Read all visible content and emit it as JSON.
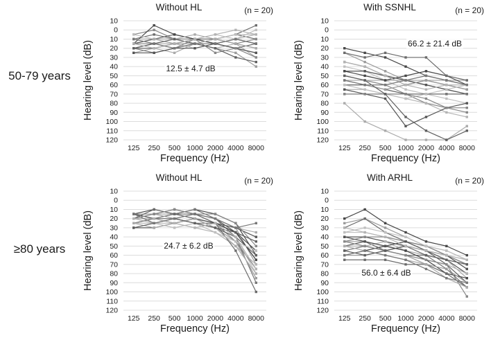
{
  "figure": {
    "row_labels": [
      "50-79 years",
      "≥80 years"
    ],
    "y_axis": {
      "label": "Hearing level (dB)",
      "tick_labels": [
        "10",
        "0",
        "10",
        "20",
        "30",
        "40",
        "50",
        "60",
        "70",
        "80",
        "90",
        "100",
        "110",
        "120"
      ],
      "tick_values": [
        -10,
        0,
        10,
        20,
        30,
        40,
        50,
        60,
        70,
        80,
        90,
        100,
        110,
        120
      ],
      "inverted": true
    },
    "x_axis": {
      "label": "Frequency (Hz)",
      "tick_labels": [
        "125",
        "250",
        "500",
        "1000",
        "2000",
        "4000",
        "8000"
      ]
    },
    "colors": {
      "gridline": "#dcdcdc",
      "text": "#1a1a1a",
      "line_palette": [
        "#474747",
        "#9b9b9b",
        "#6b6b6b",
        "#bfbfbf",
        "#545454",
        "#878787",
        "#aaaaaa",
        "#5f5f5f",
        "#b3b3b3",
        "#777777"
      ]
    }
  },
  "chart_data": [
    {
      "type": "line",
      "title": "Without HL",
      "n_label": "(n = 20)",
      "mean_label": "12.5 ± 4.7 dB",
      "age_group": "50-79 years",
      "xlabel": "Frequency (Hz)",
      "ylabel": "Hearing level (dB)",
      "x": [
        125,
        250,
        500,
        1000,
        2000,
        4000,
        8000
      ],
      "ylim": [
        -10,
        120
      ],
      "y_inverted": true,
      "grid": true,
      "series": [
        {
          "values": [
            15,
            10,
            10,
            10,
            15,
            10,
            15
          ]
        },
        {
          "values": [
            20,
            20,
            15,
            10,
            10,
            15,
            20
          ]
        },
        {
          "values": [
            10,
            5,
            10,
            15,
            10,
            5,
            10
          ]
        },
        {
          "values": [
            15,
            15,
            10,
            10,
            5,
            10,
            0
          ]
        },
        {
          "values": [
            20,
            15,
            15,
            10,
            15,
            20,
            25
          ]
        },
        {
          "values": [
            5,
            0,
            10,
            10,
            10,
            15,
            10
          ]
        },
        {
          "values": [
            25,
            20,
            25,
            15,
            20,
            15,
            30
          ]
        },
        {
          "values": [
            15,
            10,
            5,
            10,
            15,
            20,
            15
          ]
        },
        {
          "values": [
            10,
            15,
            15,
            20,
            15,
            10,
            5
          ]
        },
        {
          "values": [
            20,
            25,
            20,
            15,
            10,
            15,
            20
          ]
        },
        {
          "values": [
            15,
            -5,
            5,
            10,
            15,
            10,
            15
          ]
        },
        {
          "values": [
            10,
            10,
            15,
            15,
            20,
            25,
            40
          ]
        },
        {
          "values": [
            20,
            20,
            15,
            10,
            10,
            5,
            -5
          ]
        },
        {
          "values": [
            5,
            10,
            10,
            15,
            10,
            5,
            5
          ]
        },
        {
          "values": [
            25,
            25,
            20,
            20,
            15,
            20,
            25
          ]
        },
        {
          "values": [
            15,
            15,
            20,
            10,
            25,
            20,
            30
          ]
        },
        {
          "values": [
            10,
            10,
            10,
            5,
            10,
            15,
            20
          ]
        },
        {
          "values": [
            20,
            15,
            10,
            15,
            20,
            30,
            35
          ]
        },
        {
          "values": [
            15,
            20,
            15,
            10,
            5,
            0,
            5
          ]
        },
        {
          "values": [
            10,
            15,
            20,
            15,
            15,
            10,
            15
          ]
        }
      ]
    },
    {
      "type": "line",
      "title": "With SSNHL",
      "n_label": "(n = 20)",
      "mean_label": "66.2 ± 21.4 dB",
      "age_group": "50-79 years",
      "xlabel": "Frequency (Hz)",
      "ylabel": "Hearing level (dB)",
      "x": [
        125,
        250,
        500,
        1000,
        2000,
        4000,
        8000
      ],
      "ylim": [
        -10,
        120
      ],
      "y_inverted": true,
      "grid": true,
      "series": [
        {
          "values": [
            20,
            25,
            30,
            40,
            50,
            55,
            60
          ]
        },
        {
          "values": [
            25,
            35,
            45,
            55,
            60,
            65,
            70
          ]
        },
        {
          "values": [
            35,
            40,
            50,
            60,
            55,
            60,
            65
          ]
        },
        {
          "values": [
            40,
            45,
            55,
            65,
            70,
            75,
            80
          ]
        },
        {
          "values": [
            45,
            45,
            50,
            55,
            60,
            65,
            70
          ]
        },
        {
          "values": [
            50,
            55,
            60,
            70,
            80,
            85,
            90
          ]
        },
        {
          "values": [
            55,
            55,
            55,
            55,
            55,
            55,
            55
          ]
        },
        {
          "values": [
            60,
            60,
            65,
            70,
            70,
            70,
            70
          ]
        },
        {
          "values": [
            65,
            65,
            70,
            75,
            80,
            90,
            95
          ]
        },
        {
          "values": [
            70,
            70,
            70,
            70,
            70,
            70,
            70
          ]
        },
        {
          "values": [
            45,
            50,
            55,
            50,
            45,
            50,
            60
          ]
        },
        {
          "values": [
            55,
            60,
            65,
            60,
            55,
            60,
            65
          ]
        },
        {
          "values": [
            25,
            30,
            25,
            30,
            30,
            50,
            55
          ]
        },
        {
          "values": [
            60,
            65,
            70,
            75,
            70,
            65,
            60
          ]
        },
        {
          "values": [
            65,
            70,
            75,
            105,
            95,
            85,
            80
          ]
        },
        {
          "values": [
            70,
            70,
            70,
            70,
            75,
            85,
            85
          ]
        },
        {
          "values": [
            80,
            100,
            110,
            120,
            120,
            120,
            105
          ]
        },
        {
          "values": [
            50,
            55,
            70,
            95,
            110,
            120,
            110
          ]
        },
        {
          "values": [
            35,
            40,
            50,
            60,
            65,
            60,
            60
          ]
        },
        {
          "values": [
            55,
            60,
            60,
            55,
            50,
            55,
            60
          ]
        }
      ]
    },
    {
      "type": "line",
      "title": "Without HL",
      "n_label": "(n = 20)",
      "mean_label": "24.7 ± 6.2 dB",
      "age_group": "≥80 years",
      "xlabel": "Frequency (Hz)",
      "ylabel": "Hearing level (dB)",
      "x": [
        125,
        250,
        500,
        1000,
        2000,
        4000,
        8000
      ],
      "ylim": [
        -10,
        120
      ],
      "y_inverted": true,
      "grid": true,
      "series": [
        {
          "values": [
            15,
            10,
            15,
            10,
            15,
            25,
            60
          ]
        },
        {
          "values": [
            20,
            15,
            15,
            15,
            20,
            30,
            70
          ]
        },
        {
          "values": [
            25,
            20,
            20,
            25,
            25,
            35,
            65
          ]
        },
        {
          "values": [
            30,
            25,
            30,
            25,
            30,
            40,
            80
          ]
        },
        {
          "values": [
            15,
            15,
            10,
            15,
            20,
            35,
            55
          ]
        },
        {
          "values": [
            20,
            20,
            25,
            20,
            25,
            45,
            75
          ]
        },
        {
          "values": [
            25,
            25,
            20,
            15,
            25,
            30,
            35
          ]
        },
        {
          "values": [
            15,
            20,
            15,
            20,
            30,
            40,
            60
          ]
        },
        {
          "values": [
            20,
            25,
            25,
            30,
            35,
            50,
            70
          ]
        },
        {
          "values": [
            25,
            20,
            15,
            10,
            20,
            40,
            90
          ]
        },
        {
          "values": [
            30,
            30,
            25,
            20,
            25,
            35,
            65
          ]
        },
        {
          "values": [
            15,
            15,
            20,
            25,
            30,
            45,
            85
          ]
        },
        {
          "values": [
            20,
            10,
            15,
            15,
            25,
            55,
            100
          ]
        },
        {
          "values": [
            25,
            25,
            30,
            25,
            35,
            45,
            55
          ]
        },
        {
          "values": [
            15,
            20,
            25,
            20,
            25,
            30,
            40
          ]
        },
        {
          "values": [
            20,
            15,
            10,
            15,
            15,
            25,
            50
          ]
        },
        {
          "values": [
            25,
            30,
            25,
            20,
            30,
            50,
            80
          ]
        },
        {
          "values": [
            30,
            25,
            20,
            25,
            30,
            35,
            45
          ]
        },
        {
          "values": [
            20,
            20,
            25,
            30,
            25,
            40,
            75
          ]
        },
        {
          "values": [
            15,
            25,
            20,
            15,
            20,
            30,
            25
          ]
        }
      ]
    },
    {
      "type": "line",
      "title": "With ARHL",
      "n_label": "(n = 20)",
      "mean_label": "56.0 ± 6.4 dB",
      "age_group": "≥80 years",
      "xlabel": "Frequency (Hz)",
      "ylabel": "Hearing level (dB)",
      "x": [
        125,
        250,
        500,
        1000,
        2000,
        4000,
        8000
      ],
      "ylim": [
        -10,
        120
      ],
      "y_inverted": true,
      "grid": true,
      "series": [
        {
          "values": [
            20,
            10,
            25,
            35,
            45,
            50,
            60
          ]
        },
        {
          "values": [
            25,
            20,
            30,
            40,
            50,
            55,
            65
          ]
        },
        {
          "values": [
            30,
            20,
            35,
            45,
            50,
            60,
            70
          ]
        },
        {
          "values": [
            35,
            35,
            40,
            45,
            55,
            60,
            75
          ]
        },
        {
          "values": [
            40,
            40,
            45,
            50,
            55,
            65,
            80
          ]
        },
        {
          "values": [
            45,
            40,
            40,
            45,
            50,
            60,
            70
          ]
        },
        {
          "values": [
            45,
            45,
            50,
            55,
            60,
            65,
            85
          ]
        },
        {
          "values": [
            50,
            45,
            55,
            50,
            55,
            70,
            90
          ]
        },
        {
          "values": [
            50,
            50,
            45,
            55,
            65,
            70,
            80
          ]
        },
        {
          "values": [
            55,
            50,
            55,
            60,
            60,
            75,
            95
          ]
        },
        {
          "values": [
            60,
            55,
            50,
            55,
            65,
            80,
            85
          ]
        },
        {
          "values": [
            60,
            60,
            55,
            60,
            70,
            75,
            90
          ]
        },
        {
          "values": [
            65,
            65,
            65,
            70,
            70,
            80,
            95
          ]
        },
        {
          "values": [
            35,
            30,
            35,
            40,
            50,
            55,
            65
          ]
        },
        {
          "values": [
            40,
            45,
            50,
            45,
            55,
            60,
            75
          ]
        },
        {
          "values": [
            45,
            50,
            55,
            60,
            65,
            70,
            105
          ]
        },
        {
          "values": [
            50,
            55,
            60,
            65,
            70,
            85,
            95
          ]
        },
        {
          "values": [
            55,
            60,
            55,
            50,
            60,
            65,
            70
          ]
        },
        {
          "values": [
            30,
            35,
            40,
            50,
            55,
            60,
            65
          ]
        },
        {
          "values": [
            60,
            55,
            60,
            65,
            75,
            85,
            90
          ]
        }
      ]
    }
  ]
}
